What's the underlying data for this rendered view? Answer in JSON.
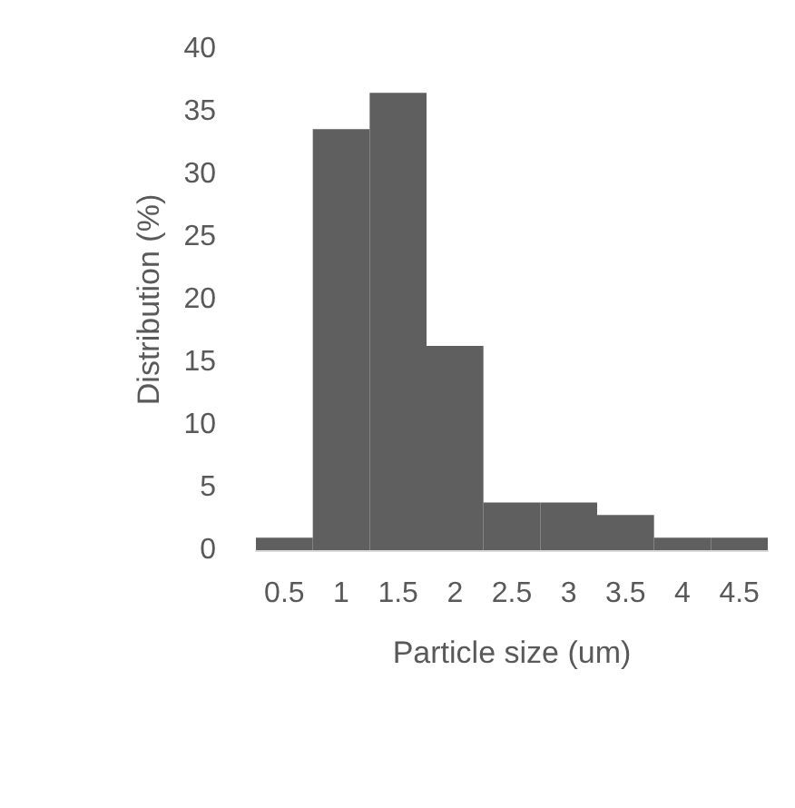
{
  "chart_data": {
    "type": "bar",
    "xlabel": "Particle size (um)",
    "ylabel": "Distribution (%)",
    "categories": [
      "0.5",
      "1",
      "1.5",
      "2",
      "2.5",
      "3",
      "3.5",
      "4",
      "4.5"
    ],
    "values": [
      1.0,
      33.6,
      36.5,
      16.3,
      3.8,
      3.8,
      2.8,
      1.0,
      1.0
    ],
    "color": "#5f5f5f",
    "ylim": [
      0,
      40
    ],
    "yticks": [
      0,
      5,
      10,
      15,
      20,
      25,
      30,
      35,
      40
    ],
    "grid": false
  }
}
